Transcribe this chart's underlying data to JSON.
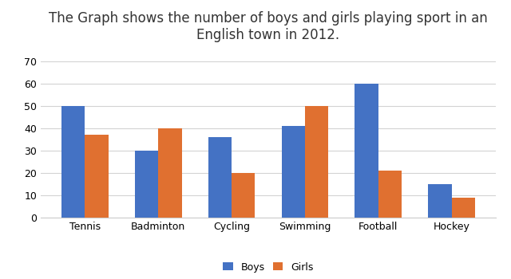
{
  "title": "The Graph shows the number of boys and girls playing sport in an\nEnglish town in 2012.",
  "categories": [
    "Tennis",
    "Badminton",
    "Cycling",
    "Swimming",
    "Football",
    "Hockey"
  ],
  "boys": [
    50,
    30,
    36,
    41,
    60,
    15
  ],
  "girls": [
    37,
    40,
    20,
    50,
    21,
    9
  ],
  "boys_color": "#4472C4",
  "girls_color": "#E07030",
  "ylim": [
    0,
    75
  ],
  "yticks": [
    0,
    10,
    20,
    30,
    40,
    50,
    60,
    70
  ],
  "legend_labels": [
    "Boys",
    "Girls"
  ],
  "bar_width": 0.32,
  "background_color": "#ffffff",
  "grid_color": "#d3d3d3",
  "title_fontsize": 12,
  "tick_fontsize": 9,
  "legend_fontsize": 9,
  "border_color": "#cccccc"
}
